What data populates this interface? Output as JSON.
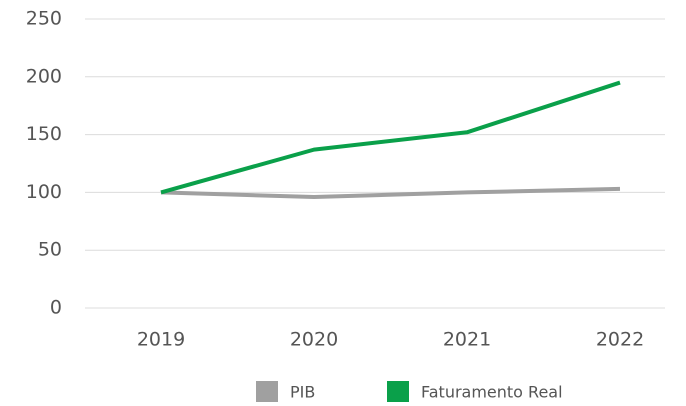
{
  "chart_data": {
    "type": "line",
    "categories": [
      "2019",
      "2020",
      "2021",
      "2022"
    ],
    "series": [
      {
        "name": "PIB",
        "color": "#a0a0a0",
        "values": [
          100,
          96,
          100,
          103
        ]
      },
      {
        "name": "Faturamento Real",
        "color": "#0aa04a",
        "values": [
          100,
          137,
          152,
          195
        ]
      }
    ],
    "ylim": [
      0,
      250
    ],
    "yticks": [
      0,
      50,
      100,
      150,
      200,
      250
    ],
    "grid": true,
    "legend": "bottom"
  }
}
